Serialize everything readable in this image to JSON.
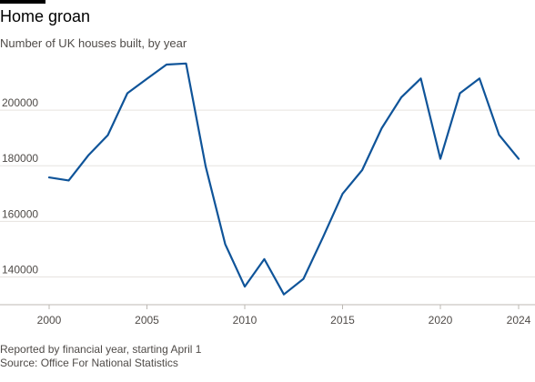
{
  "title": "Home groan",
  "subtitle": "Number of UK houses built, by year",
  "footer": {
    "note": "Reported by financial year, starting April 1",
    "source": "Source: Office For National Statistics"
  },
  "chart_data": {
    "type": "line",
    "title": "Home groan",
    "subtitle": "Number of UK houses built, by year",
    "xlabel": "",
    "ylabel": "",
    "xlim": [
      2000,
      2024
    ],
    "ylim": [
      130000,
      220000
    ],
    "x_ticks": [
      2000,
      2005,
      2010,
      2015,
      2020,
      2024
    ],
    "y_ticks": [
      140000,
      160000,
      180000,
      200000
    ],
    "y_tick_labels": [
      "140000",
      "160000",
      "180000",
      "200000"
    ],
    "grid": "horizontal",
    "legend": "none",
    "series": [
      {
        "color": "#0f5499",
        "x": [
          2000,
          2001,
          2002,
          2003,
          2004,
          2005,
          2006,
          2007,
          2008,
          2009,
          2010,
          2011,
          2012,
          2013,
          2014,
          2015,
          2016,
          2017,
          2018,
          2019,
          2020,
          2021,
          2022,
          2023,
          2024
        ],
        "values": [
          175800,
          174700,
          183700,
          191000,
          206100,
          211300,
          216400,
          216800,
          179800,
          151800,
          136500,
          146400,
          133700,
          139300,
          154300,
          169900,
          178400,
          193500,
          204600,
          211400,
          182500,
          206100,
          211400,
          191100,
          182500
        ]
      }
    ]
  }
}
